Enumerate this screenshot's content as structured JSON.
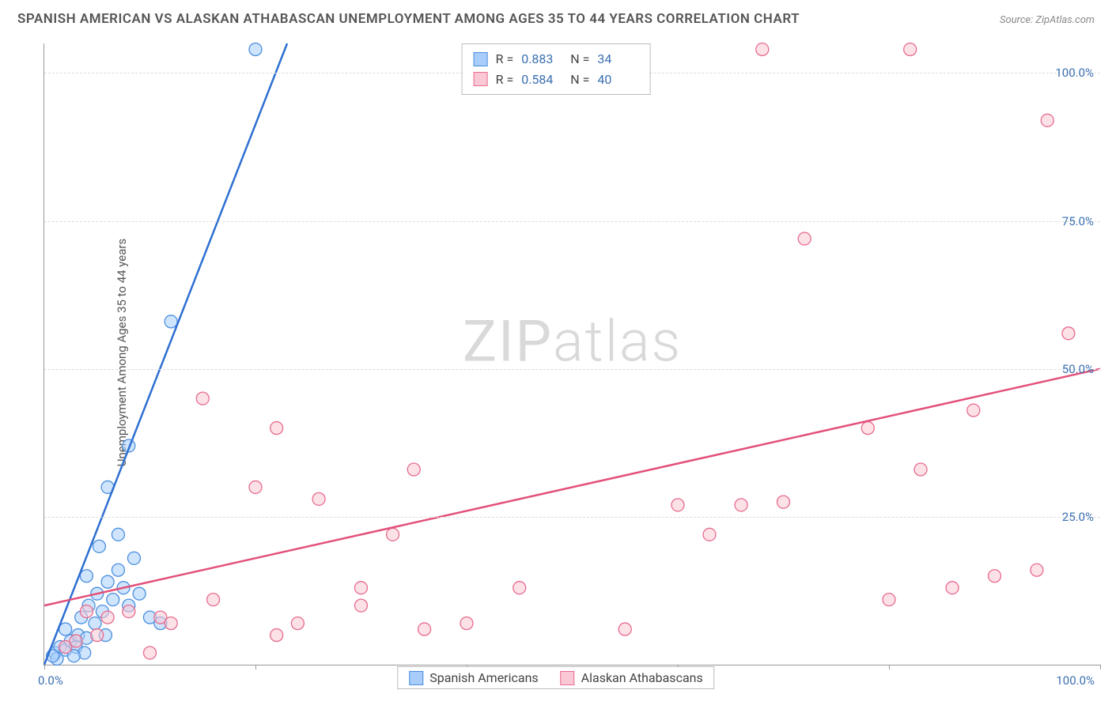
{
  "title": "SPANISH AMERICAN VS ALASKAN ATHABASCAN UNEMPLOYMENT AMONG AGES 35 TO 44 YEARS CORRELATION CHART",
  "source": "Source: ZipAtlas.com",
  "y_axis_label": "Unemployment Among Ages 35 to 44 years",
  "watermark_a": "ZIP",
  "watermark_b": "atlas",
  "chart": {
    "type": "scatter",
    "xlim": [
      0,
      100
    ],
    "ylim": [
      0,
      105
    ],
    "y_ticks": [
      25,
      50,
      75,
      100
    ],
    "y_tick_labels": [
      "25.0%",
      "50.0%",
      "75.0%",
      "100.0%"
    ],
    "x_tick_marks": [
      0,
      20,
      40,
      60,
      80,
      100
    ],
    "x_origin_label": "0.0%",
    "x_max_label": "100.0%",
    "background_color": "#ffffff",
    "grid_color": "#dddddd",
    "axis_label_color": "#3b6fb0",
    "marker_radius": 8,
    "marker_stroke_width": 1.3,
    "line_width": 2.5
  },
  "stats": [
    {
      "r_label": "R =",
      "r": "0.883",
      "n_label": "N =",
      "n": "34"
    },
    {
      "r_label": "R =",
      "r": "0.584",
      "n_label": "N =",
      "n": "40"
    }
  ],
  "series": [
    {
      "name": "Spanish Americans",
      "fill": "#a8cdfb",
      "stroke": "#4b8fde",
      "line_color": "#2e6fd1",
      "trend": {
        "x1": 0,
        "y1": 0,
        "x2": 23,
        "y2": 105
      },
      "points": [
        [
          1,
          2
        ],
        [
          1.5,
          3
        ],
        [
          2,
          2.5
        ],
        [
          2.5,
          4
        ],
        [
          2,
          6
        ],
        [
          3,
          3
        ],
        [
          3.2,
          5
        ],
        [
          3.5,
          8
        ],
        [
          4,
          4.5
        ],
        [
          4.2,
          10
        ],
        [
          4.8,
          7
        ],
        [
          5,
          12
        ],
        [
          5.5,
          9
        ],
        [
          5.2,
          20
        ],
        [
          6,
          14
        ],
        [
          6.5,
          11
        ],
        [
          7,
          16
        ],
        [
          7,
          22
        ],
        [
          7.5,
          13
        ],
        [
          8,
          10
        ],
        [
          8.5,
          18
        ],
        [
          9,
          12
        ],
        [
          6,
          30
        ],
        [
          8,
          37
        ],
        [
          12,
          58
        ],
        [
          20,
          104
        ],
        [
          4,
          15
        ],
        [
          10,
          8
        ],
        [
          11,
          7
        ],
        [
          3.8,
          2
        ],
        [
          2.8,
          1.5
        ],
        [
          1.2,
          1
        ],
        [
          0.8,
          1.5
        ],
        [
          5.8,
          5
        ]
      ]
    },
    {
      "name": "Alaskan Athabascans",
      "fill": "#f9c8d4",
      "stroke": "#e86b8f",
      "line_color": "#e3507a",
      "trend": {
        "x1": 0,
        "y1": 10,
        "x2": 100,
        "y2": 50
      },
      "points": [
        [
          2,
          3
        ],
        [
          3,
          4
        ],
        [
          4,
          9
        ],
        [
          5,
          5
        ],
        [
          6,
          8
        ],
        [
          8,
          9
        ],
        [
          10,
          2
        ],
        [
          11,
          8
        ],
        [
          12,
          7
        ],
        [
          15,
          45
        ],
        [
          16,
          11
        ],
        [
          20,
          30
        ],
        [
          22,
          5
        ],
        [
          22,
          40
        ],
        [
          24,
          7
        ],
        [
          26,
          28
        ],
        [
          30,
          10
        ],
        [
          30,
          13
        ],
        [
          33,
          22
        ],
        [
          35,
          33
        ],
        [
          36,
          6
        ],
        [
          40,
          7
        ],
        [
          45,
          13
        ],
        [
          55,
          6
        ],
        [
          60,
          27
        ],
        [
          63,
          22
        ],
        [
          66,
          27
        ],
        [
          68,
          104
        ],
        [
          70,
          27.5
        ],
        [
          72,
          72
        ],
        [
          78,
          40
        ],
        [
          80,
          11
        ],
        [
          82,
          104
        ],
        [
          83,
          33
        ],
        [
          86,
          13
        ],
        [
          88,
          43
        ],
        [
          90,
          15
        ],
        [
          94,
          16
        ],
        [
          95,
          92
        ],
        [
          97,
          56
        ]
      ]
    }
  ]
}
